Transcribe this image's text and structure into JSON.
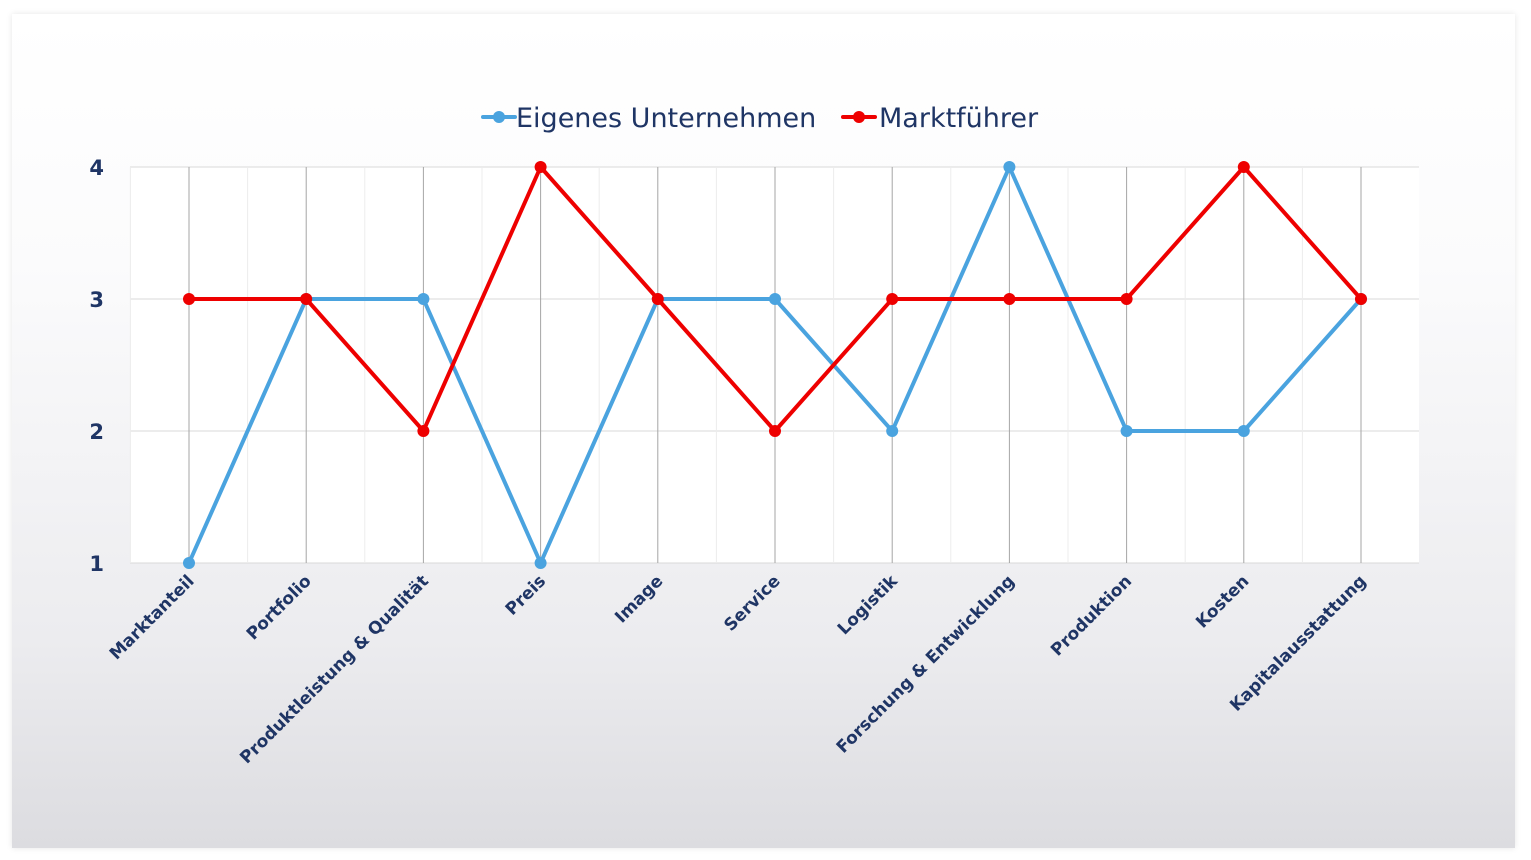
{
  "chart_data": {
    "type": "line",
    "categories": [
      "Marktanteil",
      "Portfolio",
      "Produktleistung & Qualität",
      "Preis",
      "Image",
      "Service",
      "Logistik",
      "Forschung & Entwicklung",
      "Produktion",
      "Kosten",
      "Kapitalausstattung"
    ],
    "series": [
      {
        "name": "Eigenes Unternehmen",
        "color": "#4aa3df",
        "values": [
          1,
          3,
          3,
          1,
          3,
          3,
          2,
          4,
          2,
          2,
          3
        ]
      },
      {
        "name": "Marktführer",
        "color": "#ee0000",
        "values": [
          3,
          3,
          2,
          4,
          3,
          2,
          3,
          3,
          3,
          4,
          3
        ]
      }
    ],
    "yticks": [
      "1",
      "2",
      "3",
      "4"
    ],
    "ylim": [
      1,
      4
    ],
    "grid": true,
    "legend": "top-center"
  }
}
